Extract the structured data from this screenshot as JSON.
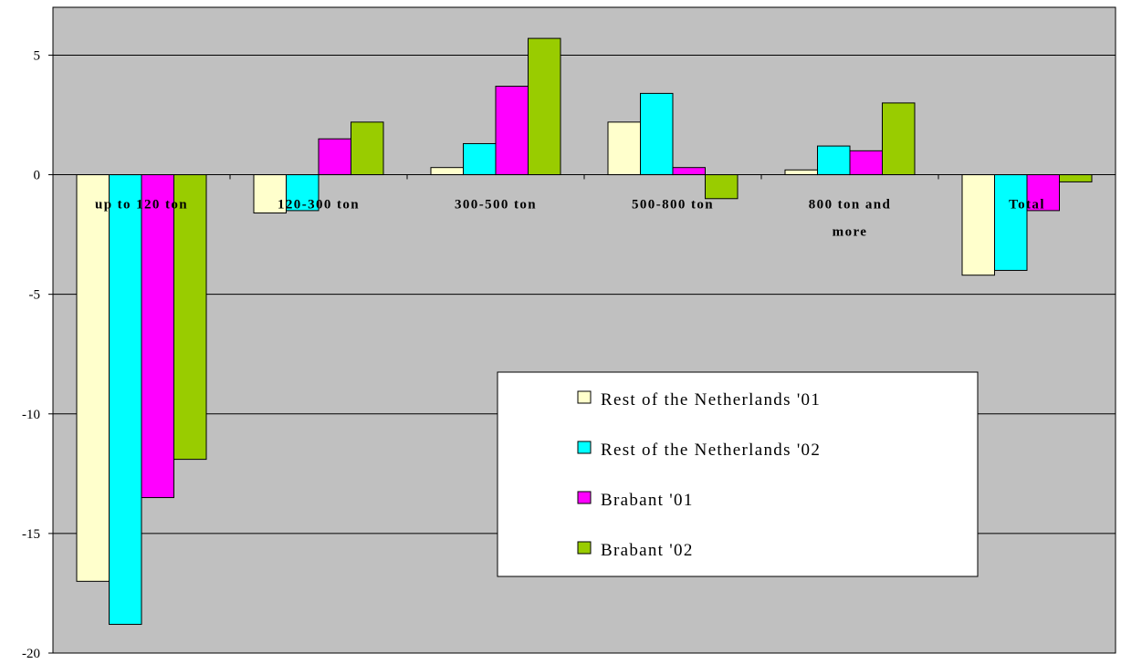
{
  "chart_data": {
    "type": "bar",
    "categories": [
      [
        "up to 120 ton"
      ],
      [
        "120-300 ton"
      ],
      [
        "300-500 ton"
      ],
      [
        "500-800 ton"
      ],
      [
        "800 ton and",
        "more"
      ],
      [
        "Total"
      ]
    ],
    "series": [
      {
        "name": "Rest of the Netherlands '01",
        "color": "#ffffcc",
        "values": [
          -17.0,
          -1.6,
          0.3,
          2.2,
          0.2,
          -4.2
        ]
      },
      {
        "name": "Rest of the Netherlands '02",
        "color": "#00ffff",
        "values": [
          -18.8,
          -1.5,
          1.3,
          3.4,
          1.2,
          -4.0
        ]
      },
      {
        "name": "Brabant '01",
        "color": "#ff00ff",
        "values": [
          -13.5,
          1.5,
          3.7,
          0.3,
          1.0,
          -1.5
        ]
      },
      {
        "name": "Brabant '02",
        "color": "#99cc00",
        "values": [
          -11.9,
          2.2,
          5.7,
          -1.0,
          3.0,
          -0.3
        ]
      }
    ],
    "ylim": [
      -20,
      7
    ],
    "yticks": [
      -20,
      -15,
      -10,
      -5,
      0,
      5
    ],
    "ytick_labels": [
      "-20",
      "-15",
      "-10",
      "-5",
      "0",
      "5"
    ],
    "grid": true,
    "plot_background": "#c0c0c0",
    "legend_position": "lower-right"
  }
}
